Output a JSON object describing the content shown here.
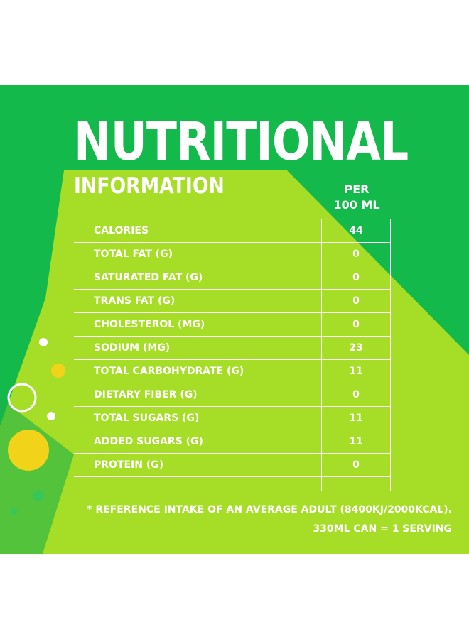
{
  "title": "NUTRITIONAL",
  "subtitle": "INFORMATION",
  "column_header": {
    "line1": "PER",
    "line2": "100 ML"
  },
  "rows": [
    {
      "name": "CALORIES",
      "value": "44"
    },
    {
      "name": "TOTAL FAT (G)",
      "value": "0"
    },
    {
      "name": "SATURATED FAT (G)",
      "value": "0"
    },
    {
      "name": "TRANS FAT (G)",
      "value": "0"
    },
    {
      "name": "CHOLESTEROL (MG)",
      "value": "0"
    },
    {
      "name": "SODIUM (MG)",
      "value": "23"
    },
    {
      "name": "TOTAL CARBOHYDRATE (G)",
      "value": "11"
    },
    {
      "name": "DIETARY FIBER (G)",
      "value": "0"
    },
    {
      "name": "TOTAL SUGARS (G)",
      "value": "11"
    },
    {
      "name": "ADDED SUGARS (G)",
      "value": "11"
    },
    {
      "name": "PROTEIN (G)",
      "value": "0"
    }
  ],
  "footnote": "* REFERENCE INTAKE OF AN AVERAGE ADULT (8400KJ/2000KCAL).",
  "serving": "330ML CAN = 1 SERVING",
  "colors": {
    "dark_green": "#13b94a",
    "lime": "#a6dd27",
    "yellow": "#f1d31a",
    "text": "#ffffff"
  }
}
